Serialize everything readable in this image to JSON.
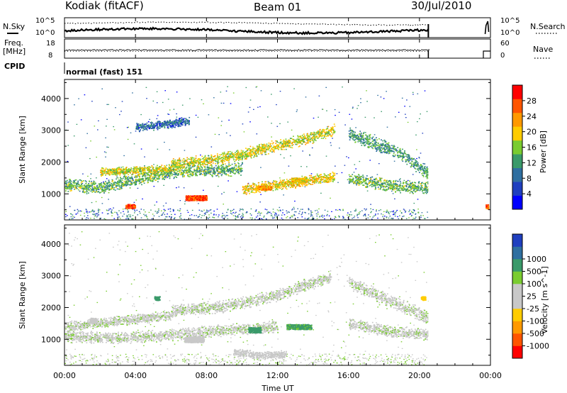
{
  "header": {
    "station": "Kodiak (fitACF)",
    "beam": "Beam 01",
    "date": "30/Jul/2010"
  },
  "status_panels": {
    "nsky_label": "N.Sky",
    "freq_label_top": "Freq.",
    "freq_label_bottom": "[MHz]",
    "cpid_label": "CPID",
    "nsearch_label": "N.Search",
    "nave_label": "Nave",
    "cpid_text": "normal (fast) 151",
    "noise_ticks": [
      "10^5",
      "10^0"
    ],
    "noise_ticks_right": [
      "10^5",
      "10^0"
    ],
    "freq_ticks": [
      "18",
      "8"
    ],
    "nave_ticks": [
      "60",
      "0"
    ]
  },
  "colors": {
    "power_scale": [
      "#0000ff",
      "#1f3fbf",
      "#2f6fa0",
      "#3a9a6a",
      "#7acc30",
      "#ffcc00",
      "#ff9900",
      "#ff5500",
      "#ff0000"
    ],
    "velocity_scale": [
      "#ff0000",
      "#ff5500",
      "#ff9900",
      "#ffcc00",
      "#c8c8c8",
      "#c8c8c8",
      "#7acc30",
      "#3a9a6a",
      "#2f6fa0",
      "#1f3fbf"
    ],
    "data_end_hours": 20.5
  },
  "chart_data": [
    {
      "type": "heatmap",
      "name": "Power",
      "xlabel": "Time UT",
      "ylabel": "Slant Range [km]",
      "xlim": [
        0,
        24
      ],
      "ylim": [
        180,
        4600
      ],
      "xticks": [
        "00:00",
        "04:00",
        "08:00",
        "12:00",
        "16:00",
        "20:00",
        "00:00"
      ],
      "yticks": [
        1000,
        2000,
        3000,
        4000
      ],
      "colorbar": {
        "label": "Power [dB]",
        "range": [
          0,
          32
        ],
        "ticks": [
          4,
          8,
          12,
          16,
          20,
          24,
          28
        ]
      },
      "echo_bands": [
        {
          "t": [
            0.0,
            2.0,
            4.0,
            6.0,
            8.0,
            10.0
          ],
          "r": [
            1300,
            1200,
            1450,
            1700,
            1750,
            1800
          ],
          "w": 220,
          "p": 14
        },
        {
          "t": [
            2.0,
            4.0,
            6.0
          ],
          "r": [
            1700,
            1750,
            1800
          ],
          "w": 150,
          "p": 18
        },
        {
          "t": [
            6.0,
            8.0,
            10.0,
            12.0,
            14.0,
            15.2
          ],
          "r": [
            1950,
            2050,
            2250,
            2550,
            2800,
            3050
          ],
          "w": 200,
          "p": 18
        },
        {
          "t": [
            10.0,
            12.0,
            14.0,
            15.2
          ],
          "r": [
            1150,
            1300,
            1450,
            1550
          ],
          "w": 180,
          "p": 20
        },
        {
          "t": [
            16.0,
            17.5,
            19.0,
            20.5
          ],
          "r": [
            2900,
            2600,
            2250,
            1650
          ],
          "w": 240,
          "p": 12
        },
        {
          "t": [
            16.0,
            18.0,
            20.5
          ],
          "r": [
            1500,
            1300,
            1200
          ],
          "w": 220,
          "p": 14
        },
        {
          "t": [
            4.0,
            5.5,
            7.0
          ],
          "r": [
            3100,
            3200,
            3300
          ],
          "w": 150,
          "p": 8
        }
      ],
      "echo_blobs": [
        {
          "t": 3.7,
          "r": 620,
          "dt": 0.55,
          "dr": 130,
          "p": 28
        },
        {
          "t": 7.4,
          "r": 880,
          "dt": 1.2,
          "dr": 160,
          "p": 28
        },
        {
          "t": 11.2,
          "r": 1200,
          "dt": 0.9,
          "dr": 130,
          "p": 22
        },
        {
          "t": 13.2,
          "r": 1450,
          "dt": 0.9,
          "dr": 130,
          "p": 20
        },
        {
          "t": 23.8,
          "r": 600,
          "dt": 0.15,
          "dr": 150,
          "p": 26
        }
      ]
    },
    {
      "type": "heatmap",
      "name": "Velocity",
      "xlabel": "Time UT",
      "ylabel": "Slant Range [km]",
      "xlim": [
        0,
        24
      ],
      "ylim": [
        180,
        4600
      ],
      "xticks": [
        "00:00",
        "04:00",
        "08:00",
        "12:00",
        "16:00",
        "20:00",
        "00:00"
      ],
      "yticks": [
        1000,
        2000,
        3000,
        4000
      ],
      "colorbar": {
        "label": "Velocity [m s^-1]",
        "ticks": [
          "-1000",
          "-500",
          "-100",
          "-25",
          "25",
          "100",
          "500",
          "1000"
        ]
      },
      "echo_bands": [
        {
          "t": [
            0.0,
            3.0,
            6.0,
            9.0,
            12.0
          ],
          "r": [
            1100,
            1050,
            1150,
            1300,
            1400
          ],
          "w": 200,
          "v": 0
        },
        {
          "t": [
            0.0,
            3.0,
            6.0
          ],
          "r": [
            1400,
            1600,
            1750
          ],
          "w": 170,
          "v": 0
        },
        {
          "t": [
            6.0,
            9.0,
            12.0,
            15.0
          ],
          "r": [
            1900,
            2050,
            2400,
            3000
          ],
          "w": 210,
          "v": 0
        },
        {
          "t": [
            16.0,
            18.0,
            20.5
          ],
          "r": [
            2800,
            2300,
            1700
          ],
          "w": 230,
          "v": 0
        },
        {
          "t": [
            16.0,
            18.5,
            20.5
          ],
          "r": [
            1500,
            1250,
            1150
          ],
          "w": 200,
          "v": 0
        },
        {
          "t": [
            9.5,
            11.0,
            12.5
          ],
          "r": [
            600,
            500,
            550
          ],
          "w": 140,
          "v": -60
        }
      ],
      "echo_blobs": [
        {
          "t": 7.3,
          "r": 1000,
          "dt": 1.1,
          "dr": 180,
          "v": -60
        },
        {
          "t": 10.7,
          "r": 1300,
          "dt": 0.7,
          "dr": 170,
          "v": 350
        },
        {
          "t": 13.2,
          "r": 1400,
          "dt": 1.4,
          "dr": 160,
          "v": 120
        },
        {
          "t": 5.2,
          "r": 2300,
          "dt": 0.3,
          "dr": 120,
          "v": 150
        },
        {
          "t": 20.2,
          "r": 2300,
          "dt": 0.25,
          "dr": 120,
          "v": -250
        },
        {
          "t": 1.6,
          "r": 1600,
          "dt": 0.4,
          "dr": 160,
          "v": -60
        }
      ]
    }
  ]
}
